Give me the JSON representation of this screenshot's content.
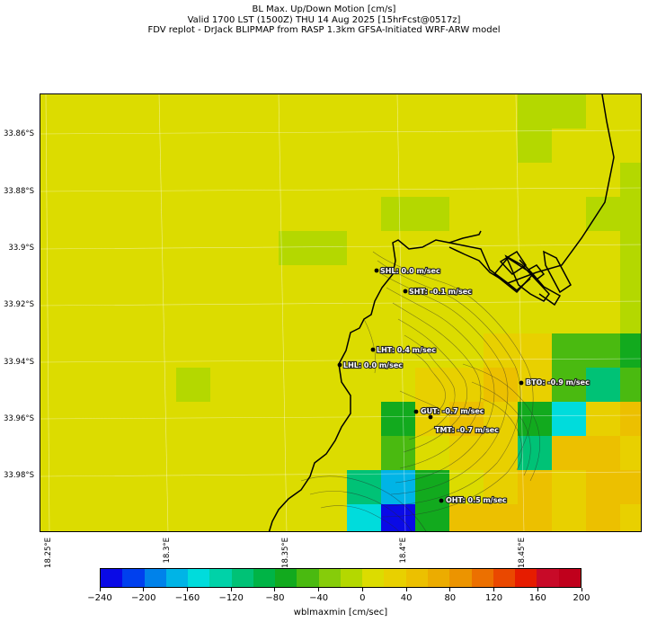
{
  "title": {
    "line1": "BL Max. Up/Down Motion [cm/s]",
    "line2": "Valid 1700 LST (1500Z) THU 14 Aug 2025 [15hrFcst@0517z]",
    "line3": "FDV replot - DrJack BLIPMAP from RASP 1.3km GFSA-Initiated WRF-ARW model"
  },
  "lat_labels": [
    "33.86°S",
    "33.88°S",
    "33.9°S",
    "33.92°S",
    "33.94°S",
    "33.96°S",
    "33.98°S"
  ],
  "lon_labels": [
    "18.25°E",
    "18.3°E",
    "18.35°E",
    "18.4°E",
    "18.45°E"
  ],
  "stations": [
    {
      "code": "SHL",
      "value": "SHL: 0.0 m/sec"
    },
    {
      "code": "SHT",
      "value": "SHT: -0.1 m/sec"
    },
    {
      "code": "LHT",
      "value": "LHT: 0.4 m/sec"
    },
    {
      "code": "LHL",
      "value": "LHL: 0.0 m/sec"
    },
    {
      "code": "BTO",
      "value": "BTO: -0.9 m/sec"
    },
    {
      "code": "GUT",
      "value": "GUT: -0.7 m/sec"
    },
    {
      "code": "TMT",
      "value": "TMT: -0.7 m/sec"
    },
    {
      "code": "OHT",
      "value": "OHT: 0.5 m/sec"
    }
  ],
  "colorbar": {
    "label": "wblmaxmin [cm/sec]",
    "min": -240,
    "max": 200,
    "step": 20,
    "tick_labels": [
      "−240",
      "−200",
      "−160",
      "−120",
      "−80",
      "−40",
      "0",
      "40",
      "80",
      "120",
      "160",
      "200"
    ],
    "colors": [
      "#0a0ae6",
      "#0040ee",
      "#0082ea",
      "#00b4e6",
      "#00dcdc",
      "#00d2a8",
      "#00c276",
      "#00b446",
      "#12aa1e",
      "#4aba10",
      "#86cc0a",
      "#b4d800",
      "#dcdc00",
      "#e8d000",
      "#ecc000",
      "#ecac00",
      "#ec9400",
      "#ec7000",
      "#ea4800",
      "#e61c00",
      "#c80a28",
      "#c0001c"
    ]
  },
  "map": {
    "grid": [
      "HHHHHHHHHHHHHHGGHHHH",
      "HHHHHHHHHHHHHHGHHHHH",
      "HHHHHHHHHHHHHHHHHGGG",
      "HHHHHHHHHHGGHHHHGGGG",
      "HHHHHHHGGHHHHHHHHGGG",
      "HHHHHHHHHHHHHHHHHGGG",
      "HHHHHHHHHHHHHHHHHGGG",
      "HHHHHHHHHHHHHJJFFEHH",
      "HHHHGHHHHHHJJIJFDFHH",
      "HHHHHHHHHHEJIJECJIHH",
      "HHHHHHHHHHFHJJDIIJHH",
      "HHHHHHHHHDBEHJIJIIHH",
      "HHHHHHHHHCAEIIIJIJHH",
      "HHHGHHHHHCCHHIJJIJJH",
      "HHHGHHHHHHHHHIIJIHHH",
      "HGGGGGGHHHHHHIIJIHHH"
    ],
    "cell_colors": {
      "A": "#0a0ae6",
      "B": "#00b4e6",
      "C": "#00dcdc",
      "D": "#00c276",
      "E": "#12aa1e",
      "F": "#4aba10",
      "G": "#b4d800",
      "H": "#dcdc00",
      "I": "#ecc000",
      "J": "#e8d000"
    }
  }
}
